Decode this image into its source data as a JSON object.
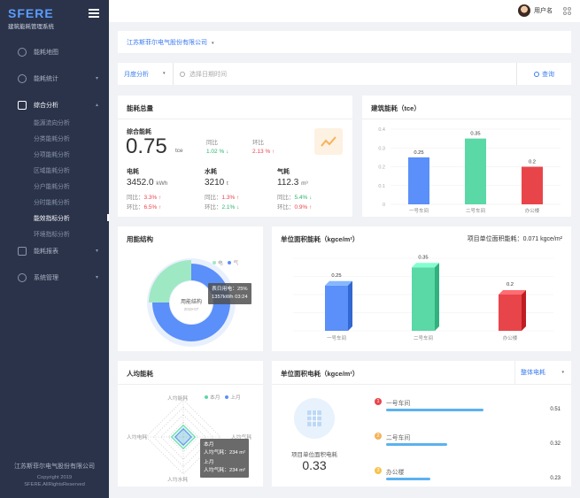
{
  "sidebar": {
    "brand": "SFERE",
    "subtitle": "建筑能耗管理系统",
    "menu": [
      {
        "label": "能耗地图",
        "icon": "map-pin-icon",
        "caret": ""
      },
      {
        "label": "能耗统计",
        "icon": "chart-pie-icon",
        "caret": "▾"
      },
      {
        "label": "综合分析",
        "icon": "analysis-icon",
        "caret": "▴"
      }
    ],
    "submenu": [
      "能源流向分析",
      "分类能耗分析",
      "分项能耗分析",
      "区域能耗分析",
      "分户能耗分析",
      "分时能耗分析",
      "能效指标分析",
      "环境指标分析"
    ],
    "menu2": [
      {
        "label": "能耗报表",
        "icon": "report-icon",
        "caret": "▾"
      },
      {
        "label": "系统管理",
        "icon": "settings-icon",
        "caret": "▾"
      }
    ],
    "footer_company": "江苏斯菲尔电气股份有限公司",
    "footer_copyright": "Copyright 2019",
    "footer_rights": "SFERE.AllRightsReserved"
  },
  "topbar": {
    "user": "用户名"
  },
  "company_bar": {
    "company": "江苏斯菲尔电气股份有限公司",
    "caret": "▾"
  },
  "filter": {
    "period": "月度分析",
    "caret": "▾",
    "date_placeholder": "选择日期时间",
    "query": "查询"
  },
  "total": {
    "title": "能耗总量",
    "overall": {
      "label": "综合能耗",
      "value": "0.75",
      "unit": "tce",
      "yoy_label": "同比",
      "yoy": "1.02 %",
      "yoy_arrow": "↓",
      "mom_label": "环比",
      "mom": "2.13 %",
      "mom_arrow": "↑"
    },
    "items": [
      {
        "label": "电耗",
        "value": "3452.0",
        "unit": "kWh",
        "yoy": "3.3%",
        "yoy_arrow": "↑",
        "mom": "6.5%",
        "mom_arrow": "↑"
      },
      {
        "label": "水耗",
        "value": "3210",
        "unit": "t",
        "yoy": "1.3%",
        "yoy_arrow": "↑",
        "mom": "2.1%",
        "mom_arrow": "↓"
      },
      {
        "label": "气耗",
        "value": "112.3",
        "unit": "m³",
        "yoy": "5.4%",
        "yoy_arrow": "↓",
        "mom": "0.9%",
        "mom_arrow": "↑"
      }
    ],
    "yoy_label": "同比：",
    "mom_label": "环比："
  },
  "building": {
    "title": "建筑能耗（tce）",
    "chart_data": {
      "type": "bar",
      "categories": [
        "一号车间",
        "二号车间",
        "办公楼"
      ],
      "values": [
        0.25,
        0.35,
        0.2
      ],
      "ylim": [
        0,
        0.4
      ],
      "yticks": [
        "0",
        "0.1",
        "0.2",
        "0.3",
        "0.4"
      ],
      "colors": [
        "#5b8ff9",
        "#5ad8a6",
        "#e8454a"
      ]
    }
  },
  "structure": {
    "title": "用能结构",
    "legend": [
      "电",
      "气"
    ],
    "center_title": "用能结构",
    "center_sub": "2019-07",
    "tooltip": [
      "表日用电：25%",
      "1357kWh  03:24"
    ],
    "chart_data": {
      "type": "pie",
      "series": [
        {
          "name": "电",
          "values": [
            75
          ]
        },
        {
          "name": "气",
          "values": [
            25
          ]
        }
      ]
    },
    "colors": [
      "#5b8ff9",
      "#9fe8c4"
    ]
  },
  "area": {
    "title": "单位面积能耗（kgce/m²）",
    "right": "项目单位面积能耗：0.071  kgce/m²",
    "chart_data": {
      "type": "bar",
      "categories": [
        "一号车间",
        "二号车间",
        "办公楼"
      ],
      "values": [
        0.25,
        0.35,
        0.2
      ],
      "ylim": [
        0,
        0.4
      ],
      "colors": [
        "#5b8ff9",
        "#5ad8a6",
        "#e8454a"
      ]
    }
  },
  "percap": {
    "title": "人均能耗",
    "legend": [
      "本月",
      "上月"
    ],
    "axes": [
      "人均能耗",
      "人均电耗",
      "人均气耗",
      "人均水耗",
      "人均能耗"
    ],
    "tooltip": [
      "本月",
      "人均气耗：234 m²",
      "上月",
      "人均气耗：234 m²"
    ]
  },
  "elec": {
    "title": "单位面积电耗（kgce/m²）",
    "select": "整体电耗",
    "caret": "▾",
    "project_label": "项目单位面积电耗",
    "project_value": "0.33",
    "rows": [
      {
        "rank": "1",
        "name": "一号车间",
        "value": "0.51",
        "pct": 0.51,
        "color": "#e8454a"
      },
      {
        "rank": "2",
        "name": "二号车间",
        "value": "0.32",
        "pct": 0.32,
        "color": "#f6b25a"
      },
      {
        "rank": "3",
        "name": "办公楼",
        "value": "0.23",
        "pct": 0.23,
        "color": "#f6c24a"
      }
    ]
  }
}
